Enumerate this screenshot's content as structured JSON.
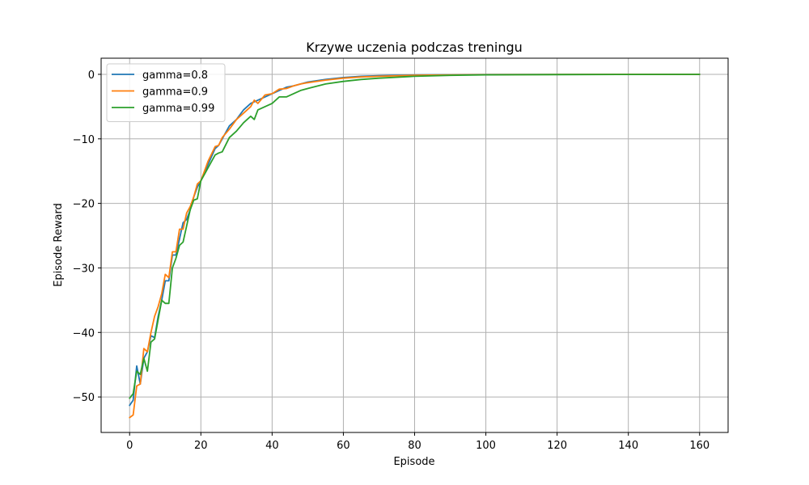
{
  "chart_data": {
    "type": "line",
    "title": "Krzywe uczenia podczas treningu",
    "xlabel": "Episode",
    "ylabel": "Episode Reward",
    "xlim": [
      -8,
      168
    ],
    "ylim": [
      -55.5,
      2.5
    ],
    "xticks": [
      0,
      20,
      40,
      60,
      80,
      100,
      120,
      140,
      160
    ],
    "yticks": [
      0,
      -10,
      -20,
      -30,
      -40,
      -50
    ],
    "grid": true,
    "legend_position": "top-left",
    "series": [
      {
        "name": "gamma=0.8",
        "color": "#1f77b4",
        "x": [
          0,
          1,
          2,
          3,
          4,
          5,
          6,
          7,
          8,
          9,
          10,
          11,
          12,
          13,
          14,
          15,
          16,
          17,
          18,
          19,
          20,
          22,
          24,
          25,
          26,
          28,
          30,
          32,
          34,
          36,
          38,
          40,
          42,
          44,
          46,
          48,
          50,
          55,
          60,
          65,
          70,
          80,
          90,
          100,
          120,
          140,
          160
        ],
        "y": [
          -51.3,
          -50.5,
          -45.2,
          -48.0,
          -44.0,
          -43.0,
          -40.5,
          -40.8,
          -37.5,
          -35.0,
          -32.0,
          -32.0,
          -28.0,
          -28.0,
          -25.5,
          -23.0,
          -22.5,
          -21.0,
          -19.0,
          -17.5,
          -16.5,
          -14.0,
          -11.5,
          -11.0,
          -10.0,
          -8.0,
          -7.0,
          -5.5,
          -4.5,
          -4.0,
          -3.5,
          -3.0,
          -2.5,
          -2.0,
          -1.8,
          -1.5,
          -1.2,
          -0.8,
          -0.5,
          -0.3,
          -0.2,
          -0.1,
          -0.05,
          -0.03,
          -0.02,
          -0.01,
          -0.01
        ]
      },
      {
        "name": "gamma=0.9",
        "color": "#ff7f0e",
        "x": [
          0,
          1,
          2,
          3,
          4,
          5,
          6,
          7,
          8,
          9,
          10,
          11,
          12,
          13,
          14,
          15,
          16,
          17,
          18,
          19,
          20,
          22,
          24,
          25,
          26,
          28,
          30,
          32,
          34,
          35,
          36,
          38,
          40,
          42,
          44,
          46,
          48,
          50,
          55,
          60,
          65,
          70,
          80,
          90,
          100,
          120,
          140,
          160
        ],
        "y": [
          -53.2,
          -52.8,
          -48.3,
          -48.0,
          -42.5,
          -43.0,
          -40.0,
          -37.5,
          -36.0,
          -34.0,
          -31.0,
          -31.5,
          -27.5,
          -27.5,
          -24.0,
          -24.0,
          -21.5,
          -20.5,
          -19.0,
          -17.0,
          -16.5,
          -13.5,
          -11.2,
          -11.0,
          -9.8,
          -8.5,
          -7.0,
          -6.0,
          -5.0,
          -4.0,
          -4.5,
          -3.2,
          -3.0,
          -2.3,
          -2.2,
          -1.8,
          -1.5,
          -1.3,
          -0.9,
          -0.6,
          -0.4,
          -0.3,
          -0.15,
          -0.08,
          -0.05,
          -0.02,
          -0.01,
          -0.01
        ]
      },
      {
        "name": "gamma=0.99",
        "color": "#2ca02c",
        "x": [
          0,
          1,
          2,
          3,
          4,
          5,
          6,
          7,
          8,
          9,
          10,
          11,
          12,
          13,
          14,
          15,
          16,
          17,
          18,
          19,
          20,
          22,
          24,
          25,
          26,
          28,
          30,
          32,
          34,
          35,
          36,
          38,
          40,
          42,
          44,
          46,
          48,
          50,
          55,
          60,
          65,
          70,
          80,
          90,
          100,
          120,
          140,
          160
        ],
        "y": [
          -50.2,
          -49.5,
          -46.0,
          -46.5,
          -44.0,
          -46.0,
          -41.5,
          -41.0,
          -38.0,
          -35.0,
          -35.5,
          -35.5,
          -30.0,
          -28.5,
          -26.5,
          -26.0,
          -23.5,
          -21.0,
          -19.5,
          -19.3,
          -16.5,
          -14.5,
          -12.5,
          -12.2,
          -12.0,
          -9.8,
          -8.8,
          -7.5,
          -6.5,
          -7.0,
          -5.5,
          -5.0,
          -4.5,
          -3.5,
          -3.5,
          -3.0,
          -2.5,
          -2.2,
          -1.5,
          -1.1,
          -0.8,
          -0.6,
          -0.3,
          -0.15,
          -0.08,
          -0.04,
          -0.02,
          -0.01
        ]
      }
    ]
  }
}
